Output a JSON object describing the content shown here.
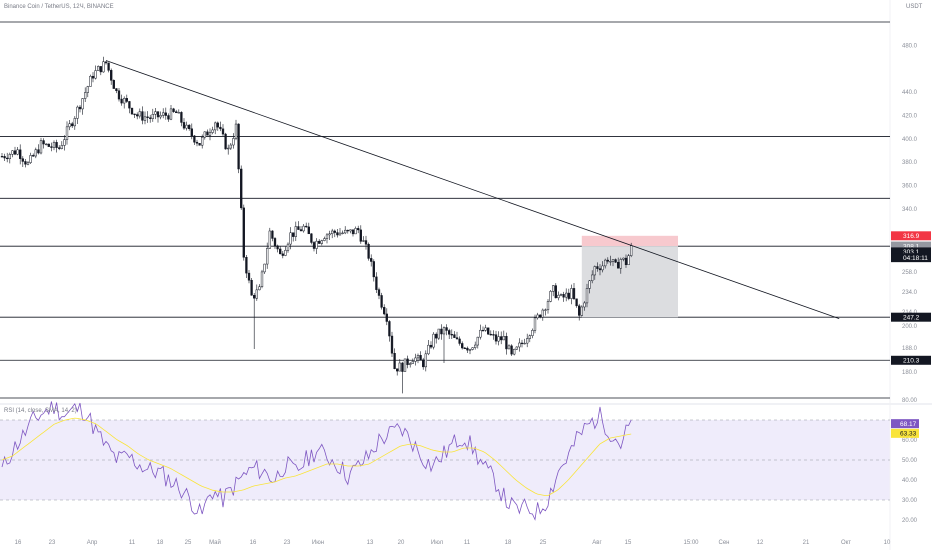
{
  "header": {
    "title": "Binance Coin / TetherUS, 12Ч, BINANCE",
    "unit": "USDT"
  },
  "rsi_header": {
    "title": "RSI (14, close, SMA, 14, 2)"
  },
  "chart_data": [
    {
      "type": "candlestick",
      "title": "Binance Coin / TetherUS, 12Ч, BINANCE",
      "yunit": "USDT",
      "ylim": [
        178,
        500
      ],
      "y_ticks": [
        "480.0",
        "440.0",
        "420.0",
        "400.0",
        "380.0",
        "360.0",
        "340.0",
        "290.0",
        "270.0",
        "258.0",
        "234.0",
        "214.0",
        "200.0",
        "188.0",
        "180.0"
      ],
      "x_ticks": [
        "16",
        "23",
        "Апр",
        "11",
        "18",
        "25",
        "Май",
        "16",
        "23",
        "Июн",
        "13",
        "20",
        "Июл",
        "11",
        "18",
        "25",
        "Авг",
        "15",
        "15:00",
        "Сен",
        "12",
        "21",
        "Окт",
        "10"
      ],
      "grid": true,
      "horizontal_levels": [
        500,
        402,
        349,
        308,
        247.2,
        210.3,
        178
      ],
      "price_tags": [
        {
          "label": "316.9",
          "value": 316.9,
          "color": "#f23645"
        },
        {
          "label": "308.1",
          "value": 308.1,
          "color": "#9598a1"
        },
        {
          "label": "303.1",
          "value": 303.1,
          "color": "#131722"
        },
        {
          "label": "04:18:11",
          "value": 298.2,
          "color": "#131722"
        },
        {
          "label": "247.2",
          "value": 247.2,
          "color": "#131722"
        },
        {
          "label": "210.3",
          "value": 210.3,
          "color": "#131722"
        }
      ],
      "trendline": {
        "from_bar": 40,
        "from_value": 467,
        "to_bar": 322,
        "to_value": 246
      },
      "position_box": {
        "from_bar": 223,
        "to_bar": 260,
        "entry": 308.1,
        "stop": 316.9,
        "target": 247.2
      },
      "colors": {
        "up": "#ffffff",
        "down": "#131722",
        "stop_zone": "#f7c9ce",
        "target_zone": "#dcdde0"
      },
      "close_path": [
        [
          0,
          385
        ],
        [
          6,
          390
        ],
        [
          10,
          378
        ],
        [
          15,
          395
        ],
        [
          22,
          392
        ],
        [
          28,
          420
        ],
        [
          35,
          455
        ],
        [
          40,
          465
        ],
        [
          44,
          440
        ],
        [
          48,
          430
        ],
        [
          52,
          420
        ],
        [
          57,
          418
        ],
        [
          62,
          420
        ],
        [
          67,
          422
        ],
        [
          71,
          408
        ],
        [
          76,
          396
        ],
        [
          82,
          415
        ],
        [
          87,
          390
        ],
        [
          90,
          410
        ],
        [
          93,
          300
        ],
        [
          96,
          265
        ],
        [
          99,
          270
        ],
        [
          103,
          320
        ],
        [
          107,
          300
        ],
        [
          111,
          318
        ],
        [
          116,
          324
        ],
        [
          120,
          310
        ],
        [
          124,
          318
        ],
        [
          128,
          320
        ],
        [
          133,
          319
        ],
        [
          137,
          322
        ],
        [
          141,
          300
        ],
        [
          145,
          265
        ],
        [
          148,
          248
        ],
        [
          151,
          204
        ],
        [
          154,
          205
        ],
        [
          158,
          213
        ],
        [
          162,
          208
        ],
        [
          166,
          230
        ],
        [
          170,
          236
        ],
        [
          175,
          226
        ],
        [
          180,
          221
        ],
        [
          185,
          236
        ],
        [
          190,
          228
        ],
        [
          193,
          229
        ],
        [
          196,
          213
        ],
        [
          200,
          225
        ],
        [
          205,
          243
        ],
        [
          209,
          258
        ],
        [
          212,
          270
        ],
        [
          215,
          263
        ],
        [
          219,
          268
        ],
        [
          222,
          248
        ],
        [
          225,
          270
        ],
        [
          228,
          290
        ],
        [
          231,
          292
        ],
        [
          233,
          298
        ],
        [
          236,
          290
        ],
        [
          238,
          297
        ],
        [
          240,
          294
        ],
        [
          242,
          306
        ]
      ],
      "wick_events": [
        {
          "bar": 97,
          "low": 220
        },
        {
          "bar": 154,
          "low": 182
        },
        {
          "bar": 170,
          "low": 208
        },
        {
          "bar": 196,
          "low": 214
        }
      ]
    },
    {
      "type": "line",
      "title": "RSI (14, close, SMA, 14, 2)",
      "ylim": [
        20,
        80
      ],
      "y_ticks": [
        "80.00",
        "60.00",
        "50.00",
        "40.00",
        "30.00",
        "20.00"
      ],
      "levels": [
        70,
        50,
        30
      ],
      "values_tags": [
        {
          "label": "68.17",
          "value": 68.17,
          "color": "#7e57c2"
        },
        {
          "label": "63.33",
          "value": 63.33,
          "color": "#f9e43a"
        }
      ],
      "series": [
        {
          "color": "#7e57c2",
          "values": [
            45,
            55,
            62,
            70,
            74,
            77,
            72,
            76,
            74,
            64,
            56,
            50,
            52,
            48,
            45,
            44,
            40,
            36,
            30,
            22,
            35,
            30,
            36,
            42,
            46,
            44,
            40,
            48,
            44,
            50,
            55,
            52,
            48,
            42,
            47,
            52,
            60,
            63,
            66,
            60,
            52,
            47,
            52,
            58,
            62,
            55,
            46,
            40,
            30,
            25,
            26,
            24,
            30,
            44,
            52,
            62,
            68,
            72,
            64,
            58,
            69
          ]
        },
        {
          "color": "#f9e43a",
          "values": [
            50,
            52,
            56,
            60,
            64,
            68,
            70,
            71,
            70,
            68,
            64,
            60,
            57,
            53,
            50,
            48,
            46,
            43,
            40,
            37,
            35,
            34,
            34,
            35,
            37,
            38,
            39,
            41,
            42,
            44,
            46,
            48,
            48,
            47,
            47,
            48,
            51,
            54,
            57,
            58,
            57,
            55,
            54,
            54,
            56,
            56,
            54,
            50,
            45,
            40,
            36,
            33,
            32,
            35,
            40,
            46,
            52,
            58,
            61,
            62,
            63
          ]
        }
      ]
    }
  ]
}
